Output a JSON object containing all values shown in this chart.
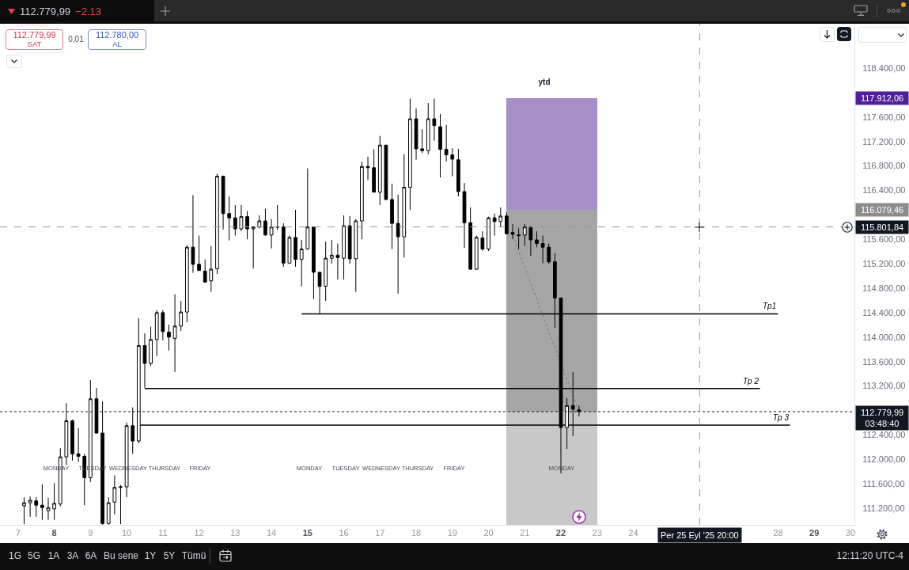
{
  "chart_data": {
    "type": "candlestick",
    "color": "#000000",
    "x": [
      "2025-09-07T04:00",
      "2025-09-07T08:00",
      "2025-09-07T12:00",
      "2025-09-07T16:00",
      "2025-09-07T20:00",
      "2025-09-08T00:00",
      "2025-09-08T04:00",
      "2025-09-08T08:00",
      "2025-09-08T12:00",
      "2025-09-08T16:00",
      "2025-09-08T20:00",
      "2025-09-09T00:00",
      "2025-09-09T04:00",
      "2025-09-09T08:00",
      "2025-09-09T12:00",
      "2025-09-09T16:00",
      "2025-09-09T20:00",
      "2025-09-10T00:00",
      "2025-09-10T04:00",
      "2025-09-10T08:00",
      "2025-09-10T12:00",
      "2025-09-10T16:00",
      "2025-09-10T20:00",
      "2025-09-11T00:00",
      "2025-09-11T04:00",
      "2025-09-11T08:00",
      "2025-09-11T12:00",
      "2025-09-11T16:00",
      "2025-09-11T20:00",
      "2025-09-12T00:00",
      "2025-09-12T04:00",
      "2025-09-12T08:00",
      "2025-09-12T12:00",
      "2025-09-12T16:00",
      "2025-09-12T20:00",
      "2025-09-13T00:00",
      "2025-09-13T04:00",
      "2025-09-13T08:00",
      "2025-09-13T12:00",
      "2025-09-13T16:00",
      "2025-09-13T20:00",
      "2025-09-14T00:00",
      "2025-09-14T04:00",
      "2025-09-14T08:00",
      "2025-09-14T12:00",
      "2025-09-14T16:00",
      "2025-09-14T20:00",
      "2025-09-15T00:00",
      "2025-09-15T04:00",
      "2025-09-15T08:00",
      "2025-09-15T12:00",
      "2025-09-15T16:00",
      "2025-09-15T20:00",
      "2025-09-16T00:00",
      "2025-09-16T04:00",
      "2025-09-16T08:00",
      "2025-09-16T12:00",
      "2025-09-16T16:00",
      "2025-09-16T20:00",
      "2025-09-17T00:00",
      "2025-09-17T04:00",
      "2025-09-17T08:00",
      "2025-09-17T12:00",
      "2025-09-17T16:00",
      "2025-09-17T20:00",
      "2025-09-18T00:00",
      "2025-09-18T04:00",
      "2025-09-18T08:00",
      "2025-09-18T12:00",
      "2025-09-18T16:00",
      "2025-09-18T20:00",
      "2025-09-19T00:00",
      "2025-09-19T04:00",
      "2025-09-19T08:00",
      "2025-09-19T12:00",
      "2025-09-19T16:00",
      "2025-09-19T20:00",
      "2025-09-20T00:00",
      "2025-09-20T04:00",
      "2025-09-20T08:00",
      "2025-09-20T12:00",
      "2025-09-20T16:00",
      "2025-09-20T20:00",
      "2025-09-21T00:00",
      "2025-09-21T04:00",
      "2025-09-21T08:00",
      "2025-09-21T12:00",
      "2025-09-21T16:00",
      "2025-09-21T20:00",
      "2025-09-22T00:00",
      "2025-09-22T04:00",
      "2025-09-22T08:00",
      "2025-09-22T12:00"
    ],
    "ohlc": [
      [
        111240,
        111380,
        110940,
        111290
      ],
      [
        111290,
        111390,
        111060,
        111330
      ],
      [
        111320,
        111380,
        111060,
        111250
      ],
      [
        111250,
        111590,
        111010,
        111210
      ],
      [
        111160,
        111370,
        111010,
        111210
      ],
      [
        111190,
        111610,
        111010,
        111280
      ],
      [
        111270,
        112180,
        111230,
        112040
      ],
      [
        112040,
        112920,
        111910,
        112630
      ],
      [
        112630,
        112650,
        111980,
        112090
      ],
      [
        112090,
        112510,
        111960,
        112050
      ],
      [
        112050,
        112090,
        111250,
        111700
      ],
      [
        111700,
        113300,
        111630,
        112990
      ],
      [
        112990,
        113170,
        112420,
        112430
      ],
      [
        112430,
        112950,
        110930,
        110950
      ],
      [
        110950,
        111380,
        110930,
        111290
      ],
      [
        111300,
        111740,
        111100,
        111540
      ],
      [
        111540,
        111580,
        110940,
        111550
      ],
      [
        111550,
        112600,
        111380,
        112550
      ],
      [
        112550,
        112850,
        112090,
        112300
      ],
      [
        112300,
        114310,
        112260,
        113860
      ],
      [
        113860,
        114060,
        113170,
        113570
      ],
      [
        113570,
        114170,
        113530,
        113960
      ],
      [
        113960,
        114440,
        113690,
        114400
      ],
      [
        114400,
        114440,
        113950,
        114090
      ],
      [
        114080,
        114200,
        113780,
        114000
      ],
      [
        113980,
        114700,
        113430,
        114180
      ],
      [
        114180,
        114590,
        114100,
        114410
      ],
      [
        114410,
        115500,
        114240,
        115470
      ],
      [
        115470,
        116320,
        115050,
        115190
      ],
      [
        115190,
        115660,
        115080,
        115090
      ],
      [
        115080,
        115270,
        114890,
        114900
      ],
      [
        114920,
        115490,
        114740,
        115110
      ],
      [
        115120,
        116670,
        115030,
        116630
      ],
      [
        116630,
        116640,
        115760,
        116020
      ],
      [
        116020,
        116300,
        115580,
        115950
      ],
      [
        115950,
        116160,
        115660,
        115770
      ],
      [
        115770,
        116160,
        115730,
        115970
      ],
      [
        115970,
        116060,
        115600,
        115770
      ],
      [
        115770,
        115810,
        115120,
        115800
      ],
      [
        115800,
        115990,
        115780,
        115900
      ],
      [
        115900,
        116100,
        115660,
        115670
      ],
      [
        115670,
        115930,
        115450,
        115800
      ],
      [
        115800,
        116160,
        115750,
        115800
      ],
      [
        115800,
        115860,
        115150,
        115210
      ],
      [
        115210,
        115660,
        115200,
        115630
      ],
      [
        115630,
        116080,
        115150,
        115270
      ],
      [
        115270,
        115590,
        114830,
        115440
      ],
      [
        115440,
        116760,
        115430,
        115800
      ],
      [
        115800,
        115800,
        114620,
        115060
      ],
      [
        115060,
        115060,
        114370,
        114830
      ],
      [
        114830,
        115560,
        114590,
        115290
      ],
      [
        115290,
        115590,
        115200,
        115340
      ],
      [
        115340,
        115530,
        114940,
        115300
      ],
      [
        115290,
        115990,
        114940,
        115820
      ],
      [
        115820,
        115980,
        115200,
        115280
      ],
      [
        115280,
        115930,
        114740,
        115900
      ],
      [
        115900,
        116870,
        115600,
        116790
      ],
      [
        116790,
        116950,
        116570,
        116770
      ],
      [
        116770,
        117070,
        116370,
        116370
      ],
      [
        116370,
        117290,
        116160,
        117140
      ],
      [
        117140,
        117140,
        116240,
        116250
      ],
      [
        116250,
        116510,
        115440,
        115860
      ],
      [
        115860,
        116330,
        114710,
        115640
      ],
      [
        115640,
        116990,
        115300,
        116450
      ],
      [
        116450,
        117900,
        116080,
        117570
      ],
      [
        117570,
        117740,
        116900,
        117080
      ],
      [
        117080,
        117400,
        117010,
        117050
      ],
      [
        117050,
        117830,
        116990,
        117570
      ],
      [
        117570,
        117900,
        117210,
        117460
      ],
      [
        117440,
        117650,
        116610,
        117070
      ],
      [
        117070,
        117470,
        116870,
        116980
      ],
      [
        116980,
        117090,
        116630,
        116910
      ],
      [
        116900,
        117080,
        116300,
        116380
      ],
      [
        116380,
        116520,
        115460,
        115870
      ],
      [
        115870,
        116120,
        115100,
        115110
      ],
      [
        115110,
        115660,
        115100,
        115630
      ],
      [
        115620,
        115730,
        115410,
        115440
      ],
      [
        115440,
        115970,
        115410,
        115950
      ],
      [
        115950,
        116020,
        115660,
        115890
      ],
      [
        115890,
        116120,
        115800,
        115980
      ],
      [
        115980,
        116040,
        115690,
        115690
      ],
      [
        115710,
        115850,
        115600,
        115680
      ],
      [
        115670,
        115780,
        115440,
        115660
      ],
      [
        115670,
        115850,
        115490,
        115800
      ],
      [
        115800,
        115820,
        115330,
        115590
      ],
      [
        115590,
        115730,
        115470,
        115530
      ],
      [
        115530,
        115660,
        115210,
        115470
      ],
      [
        115470,
        115530,
        115200,
        115230
      ],
      [
        115230,
        115370,
        114150,
        114640
      ],
      [
        114640,
        114640,
        111770,
        112520
      ],
      [
        112520,
        113000,
        112170,
        112880
      ],
      [
        112880,
        113430,
        112380,
        112820
      ],
      [
        112810,
        112880,
        112700,
        112779.99
      ]
    ],
    "series": [
      {
        "type": "bar",
        "color": "#c8c8c8",
        "x": [
          "2025-09-21T03:00",
          "2025-09-22T09:00"
        ],
        "base": [
          110930,
          110930
        ],
        "values": [
          1850,
          1850
        ]
      },
      {
        "type": "bar",
        "color": "#a6a6a6",
        "x": [
          "2025-09-21T03:00",
          "2025-09-22T09:00"
        ],
        "base": [
          112780,
          112780
        ],
        "values": [
          3300,
          3300
        ]
      },
      {
        "type": "bar",
        "color": "#a78fca",
        "x": [
          "2025-09-21T03:00",
          "2025-09-22T09:00"
        ],
        "base": [
          116080,
          116080
        ],
        "values": [
          1830,
          1830
        ]
      },
      {
        "type": "line",
        "color": "#8a8a8a",
        "line_style": "dotted",
        "x": [
          "2025-09-20T16:00",
          "2025-09-22T12:00"
        ],
        "values": [
          115670,
          112780
        ]
      },
      {
        "type": "line",
        "name": "Tp1",
        "color": "#000000",
        "x": [
          "2025-09-14T20:00",
          "2025-09-28T00:00"
        ],
        "values": [
          114380,
          114380
        ]
      },
      {
        "type": "line",
        "name": "Tp 2",
        "color": "#000000",
        "x": [
          "2025-09-10T12:00",
          "2025-09-27T12:00"
        ],
        "values": [
          113160,
          113160
        ]
      },
      {
        "type": "line",
        "name": "Tp 3",
        "color": "#000000",
        "x": [
          "2025-09-10T09:00",
          "2025-09-28T08:00"
        ],
        "values": [
          112560,
          112560
        ]
      }
    ],
    "xlim": [
      "2025-09-06T12:00",
      "2025-09-30T02:40"
    ],
    "ylim": [
      110928,
      119125
    ],
    "xticks": [
      {
        "value": "2025-09-07",
        "label": "7"
      },
      {
        "value": "2025-09-08",
        "label": "8"
      },
      {
        "value": "2025-09-09",
        "label": "9"
      },
      {
        "value": "2025-09-10",
        "label": "10"
      },
      {
        "value": "2025-09-11",
        "label": "11"
      },
      {
        "value": "2025-09-12",
        "label": "12"
      },
      {
        "value": "2025-09-13",
        "label": "13"
      },
      {
        "value": "2025-09-14",
        "label": "14"
      },
      {
        "value": "2025-09-15",
        "label": "15"
      },
      {
        "value": "2025-09-16",
        "label": "16"
      },
      {
        "value": "2025-09-17",
        "label": "17"
      },
      {
        "value": "2025-09-18",
        "label": "18"
      },
      {
        "value": "2025-09-19",
        "label": "19"
      },
      {
        "value": "2025-09-20",
        "label": "20"
      },
      {
        "value": "2025-09-21",
        "label": "21"
      },
      {
        "value": "2025-09-22",
        "label": "22"
      },
      {
        "value": "2025-09-23",
        "label": "23"
      },
      {
        "value": "2025-09-24",
        "label": "24"
      },
      {
        "value": "2025-09-28",
        "label": "28"
      },
      {
        "value": "2025-09-29",
        "label": "29"
      },
      {
        "value": "2025-09-30",
        "label": "30"
      }
    ],
    "yticks": [
      {
        "value": 118400,
        "label": "118.400,00"
      },
      {
        "value": 117600,
        "label": "117.600,00"
      },
      {
        "value": 117200,
        "label": "117.200,00"
      },
      {
        "value": 116800,
        "label": "116.800,00"
      },
      {
        "value": 116400,
        "label": "116.400,00"
      },
      {
        "value": 115600,
        "label": "115.600,00"
      },
      {
        "value": 115200,
        "label": "115.200,00"
      },
      {
        "value": 114800,
        "label": "114.800,00"
      },
      {
        "value": 114400,
        "label": "114.400,00"
      },
      {
        "value": 114000,
        "label": "114.000,00"
      },
      {
        "value": 113600,
        "label": "113.600,00"
      },
      {
        "value": 113200,
        "label": "113.200,00"
      },
      {
        "value": 112400,
        "label": "112.400,00"
      },
      {
        "value": 112000,
        "label": "112.000,00"
      },
      {
        "value": 111600,
        "label": "111.600,00"
      },
      {
        "value": 111200,
        "label": "111.200,00"
      }
    ],
    "ref_lines": [
      {
        "axis": "y",
        "value": 112779.99,
        "label": "112.779,99\n03:48:40",
        "color": "#131722",
        "line_style": "dotted"
      },
      {
        "axis": "y",
        "value": 115801.84,
        "label": "115.801,84",
        "color": "#9598a1",
        "line_style": "dashed"
      },
      {
        "axis": "x",
        "value": "2025-09-25T20:00",
        "label": "Per 25 Eyl '25 20:00",
        "color": "#9598a1",
        "line_style": "dashed"
      }
    ],
    "annotations": [
      "112.779,99",
      "−2.13",
      "112.779,99",
      "SAT",
      "0,01",
      "112.780,00",
      "AL",
      "ytd",
      "117.912,06",
      "116.079,46",
      "MONDAY",
      "TUESDAY",
      "WEDNESDAY",
      "THURSDAY",
      "FRIDAY",
      "MONDAY",
      "TUESDAY",
      "WEDNESDAY",
      "THURSDAY",
      "FRIDAY",
      "MONDAY",
      "1G",
      "5G",
      "1A",
      "3A",
      "6A",
      "Bu sene",
      "1Y",
      "5Y",
      "Tümü",
      "12:11:20 UTC-4"
    ],
    "grid": false,
    "legend": false
  }
}
